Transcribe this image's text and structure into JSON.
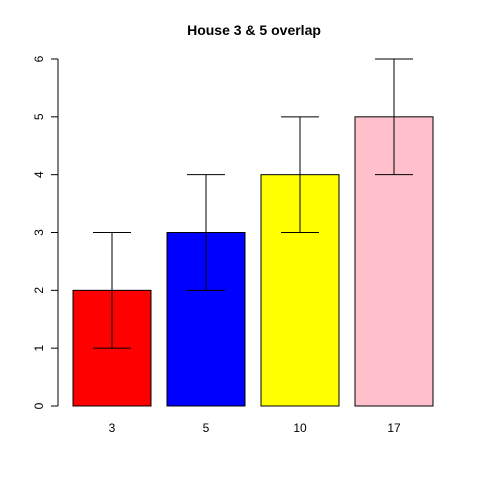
{
  "chart_data": {
    "type": "bar",
    "title": "House 3 & 5 overlap",
    "xlabel": "",
    "ylabel": "",
    "categories": [
      "3",
      "5",
      "10",
      "17"
    ],
    "values": [
      2,
      3,
      4,
      5
    ],
    "error_low": [
      1,
      2,
      3,
      4
    ],
    "error_high": [
      3,
      4,
      5,
      6
    ],
    "colors": [
      "#ff0000",
      "#0000ff",
      "#ffff00",
      "#ffc0cb"
    ],
    "ylim": [
      0,
      6
    ],
    "yticks": [
      "0",
      "1",
      "2",
      "3",
      "4",
      "5",
      "6"
    ],
    "grid": false,
    "legend": "none"
  }
}
